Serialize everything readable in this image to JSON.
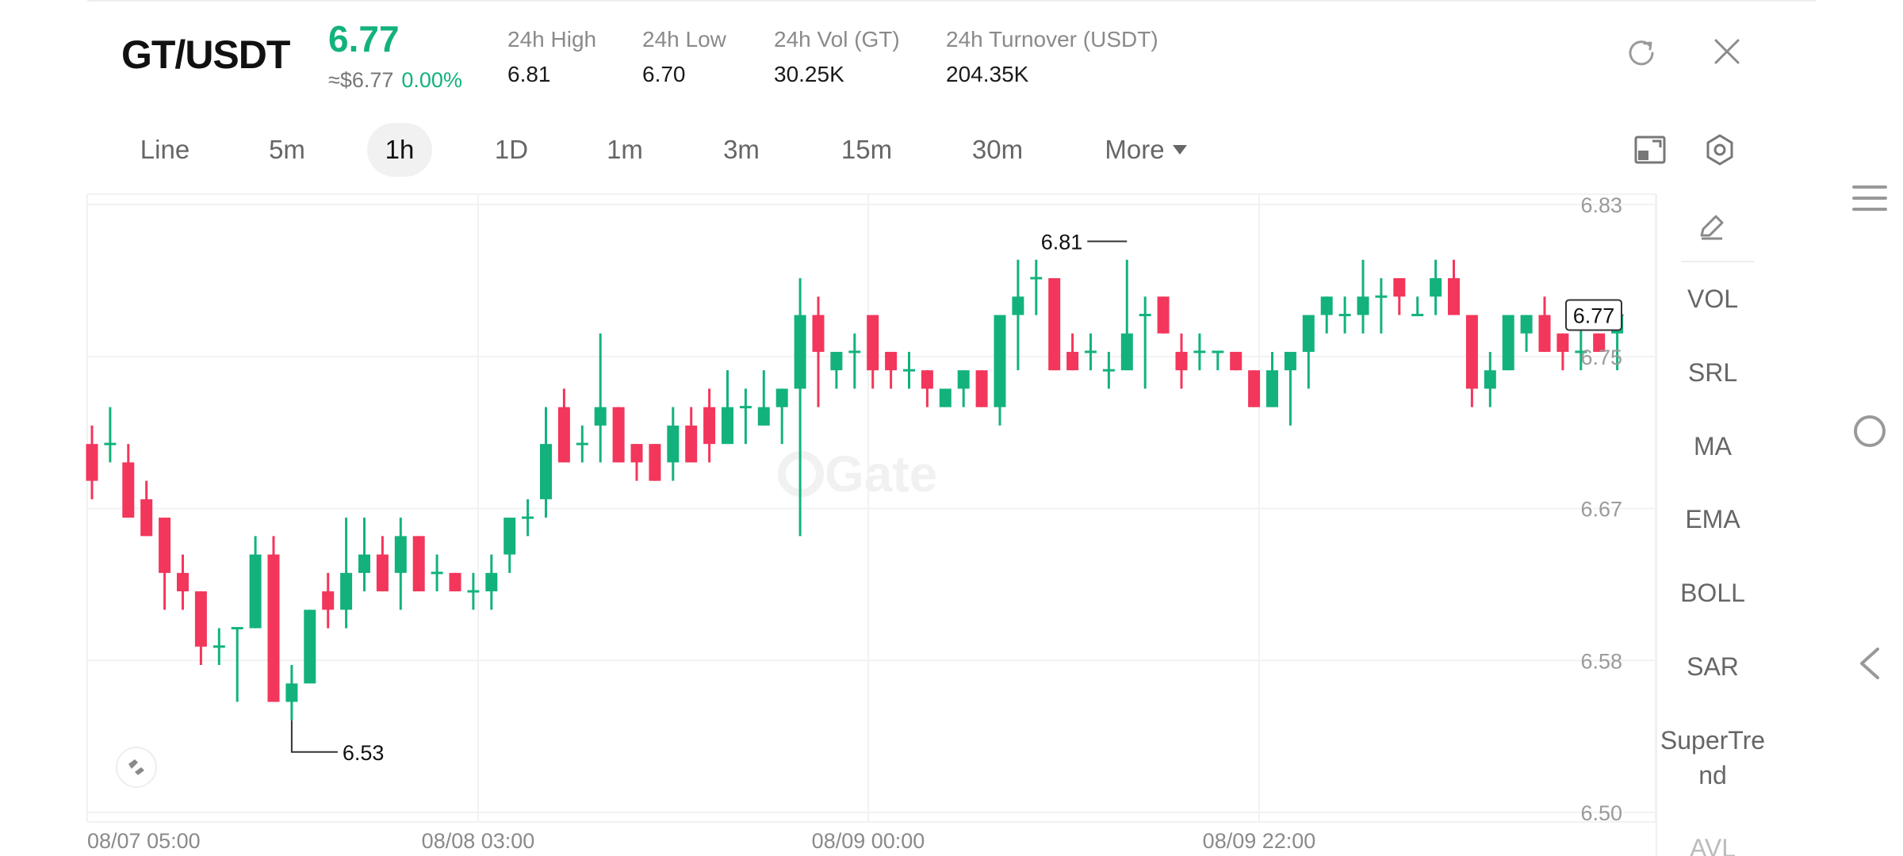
{
  "header": {
    "pair": "GT/USDT",
    "last_price": "6.77",
    "approx_usd": "≈$6.77",
    "change_pct": "0.00%",
    "stats": [
      {
        "label": "24h   High",
        "value": "6.81"
      },
      {
        "label": "24h   Low",
        "value": "6.70"
      },
      {
        "label": "24h   Vol (GT)",
        "value": "30.25K"
      },
      {
        "label": "24h   Turnover (USDT)",
        "value": "204.35K"
      }
    ],
    "icons": {
      "refresh": "refresh-icon",
      "close": "close-icon"
    }
  },
  "tabs": {
    "items": [
      "Line",
      "5m",
      "1h",
      "1D",
      "1m",
      "3m",
      "15m",
      "30m"
    ],
    "active": "1h",
    "more": "More"
  },
  "toolbar_icons": {
    "fullscreen": "landscape-icon",
    "settings": "settings-icon"
  },
  "indicators": {
    "items": [
      "VOL",
      "SRL",
      "MA",
      "EMA",
      "BOLL",
      "SAR",
      "SuperTre",
      "nd",
      "AVL"
    ],
    "draw_icon": "pencil-icon"
  },
  "nav_icons": [
    "menu-icon",
    "home-circle-icon",
    "back-chevron-icon"
  ],
  "watermark": "Gate",
  "colors": {
    "up": "#13b27d",
    "down": "#f3365b"
  },
  "chart_data": {
    "type": "candlestick",
    "y_ticks": [
      "6.83",
      "6.75",
      "6.67",
      "6.58",
      "6.50"
    ],
    "x_ticks": [
      "08/07 05:00",
      "08/08 03:00",
      "08/09 00:00",
      "08/09 22:00"
    ],
    "ylim": [
      6.5,
      6.83
    ],
    "high_label": "6.81",
    "low_label": "6.53",
    "current_price_label": "6.77",
    "candles": [
      [
        6.7,
        6.68,
        6.71,
        6.67
      ],
      [
        6.7,
        6.7,
        6.72,
        6.69
      ],
      [
        6.69,
        6.66,
        6.7,
        6.66
      ],
      [
        6.67,
        6.65,
        6.68,
        6.65
      ],
      [
        6.66,
        6.63,
        6.66,
        6.61
      ],
      [
        6.63,
        6.62,
        6.64,
        6.61
      ],
      [
        6.62,
        6.59,
        6.62,
        6.58
      ],
      [
        6.59,
        6.59,
        6.6,
        6.58
      ],
      [
        6.6,
        6.6,
        6.6,
        6.56
      ],
      [
        6.6,
        6.64,
        6.65,
        6.6
      ],
      [
        6.64,
        6.56,
        6.65,
        6.56
      ],
      [
        6.56,
        6.57,
        6.58,
        6.55
      ],
      [
        6.57,
        6.61,
        6.61,
        6.57
      ],
      [
        6.62,
        6.61,
        6.63,
        6.6
      ],
      [
        6.61,
        6.63,
        6.66,
        6.6
      ],
      [
        6.63,
        6.64,
        6.66,
        6.62
      ],
      [
        6.64,
        6.62,
        6.65,
        6.62
      ],
      [
        6.63,
        6.65,
        6.66,
        6.61
      ],
      [
        6.65,
        6.62,
        6.65,
        6.62
      ],
      [
        6.63,
        6.63,
        6.64,
        6.62
      ],
      [
        6.63,
        6.62,
        6.63,
        6.62
      ],
      [
        6.62,
        6.62,
        6.63,
        6.61
      ],
      [
        6.62,
        6.63,
        6.64,
        6.61
      ],
      [
        6.64,
        6.66,
        6.66,
        6.63
      ],
      [
        6.66,
        6.66,
        6.67,
        6.65
      ],
      [
        6.67,
        6.7,
        6.72,
        6.66
      ],
      [
        6.72,
        6.69,
        6.73,
        6.69
      ],
      [
        6.7,
        6.7,
        6.71,
        6.69
      ],
      [
        6.71,
        6.72,
        6.76,
        6.69
      ],
      [
        6.72,
        6.69,
        6.72,
        6.69
      ],
      [
        6.7,
        6.69,
        6.7,
        6.68
      ],
      [
        6.7,
        6.68,
        6.7,
        6.68
      ],
      [
        6.69,
        6.71,
        6.72,
        6.68
      ],
      [
        6.71,
        6.69,
        6.72,
        6.69
      ],
      [
        6.72,
        6.7,
        6.73,
        6.69
      ],
      [
        6.7,
        6.72,
        6.74,
        6.7
      ],
      [
        6.72,
        6.72,
        6.73,
        6.7
      ],
      [
        6.71,
        6.72,
        6.74,
        6.71
      ],
      [
        6.72,
        6.73,
        6.73,
        6.7
      ],
      [
        6.73,
        6.77,
        6.79,
        6.65
      ],
      [
        6.77,
        6.75,
        6.78,
        6.72
      ],
      [
        6.74,
        6.75,
        6.75,
        6.73
      ],
      [
        6.75,
        6.75,
        6.76,
        6.73
      ],
      [
        6.77,
        6.74,
        6.77,
        6.73
      ],
      [
        6.75,
        6.74,
        6.75,
        6.73
      ],
      [
        6.74,
        6.74,
        6.75,
        6.73
      ],
      [
        6.74,
        6.73,
        6.74,
        6.72
      ],
      [
        6.72,
        6.73,
        6.73,
        6.72
      ],
      [
        6.73,
        6.74,
        6.74,
        6.72
      ],
      [
        6.74,
        6.72,
        6.74,
        6.72
      ],
      [
        6.72,
        6.77,
        6.77,
        6.71
      ],
      [
        6.77,
        6.78,
        6.8,
        6.74
      ],
      [
        6.79,
        6.79,
        6.8,
        6.77
      ],
      [
        6.79,
        6.74,
        6.79,
        6.74
      ],
      [
        6.75,
        6.74,
        6.76,
        6.74
      ],
      [
        6.75,
        6.75,
        6.76,
        6.74
      ],
      [
        6.74,
        6.74,
        6.75,
        6.73
      ],
      [
        6.74,
        6.76,
        6.8,
        6.74
      ],
      [
        6.77,
        6.77,
        6.78,
        6.73
      ],
      [
        6.78,
        6.76,
        6.78,
        6.76
      ],
      [
        6.75,
        6.74,
        6.76,
        6.73
      ],
      [
        6.75,
        6.75,
        6.76,
        6.74
      ],
      [
        6.75,
        6.75,
        6.75,
        6.74
      ],
      [
        6.75,
        6.74,
        6.75,
        6.74
      ],
      [
        6.74,
        6.72,
        6.74,
        6.72
      ],
      [
        6.72,
        6.74,
        6.75,
        6.72
      ],
      [
        6.74,
        6.75,
        6.75,
        6.71
      ],
      [
        6.75,
        6.77,
        6.77,
        6.73
      ],
      [
        6.77,
        6.78,
        6.78,
        6.76
      ],
      [
        6.77,
        6.77,
        6.78,
        6.76
      ],
      [
        6.77,
        6.78,
        6.8,
        6.76
      ],
      [
        6.78,
        6.78,
        6.79,
        6.76
      ],
      [
        6.79,
        6.78,
        6.79,
        6.77
      ],
      [
        6.77,
        6.77,
        6.78,
        6.77
      ],
      [
        6.78,
        6.79,
        6.8,
        6.77
      ],
      [
        6.79,
        6.77,
        6.8,
        6.77
      ],
      [
        6.77,
        6.73,
        6.77,
        6.72
      ],
      [
        6.73,
        6.74,
        6.75,
        6.72
      ],
      [
        6.74,
        6.77,
        6.77,
        6.74
      ],
      [
        6.76,
        6.77,
        6.77,
        6.75
      ],
      [
        6.77,
        6.75,
        6.78,
        6.75
      ],
      [
        6.76,
        6.75,
        6.76,
        6.74
      ],
      [
        6.75,
        6.75,
        6.77,
        6.74
      ],
      [
        6.76,
        6.75,
        6.76,
        6.75
      ],
      [
        6.76,
        6.77,
        6.77,
        6.74
      ]
    ]
  }
}
